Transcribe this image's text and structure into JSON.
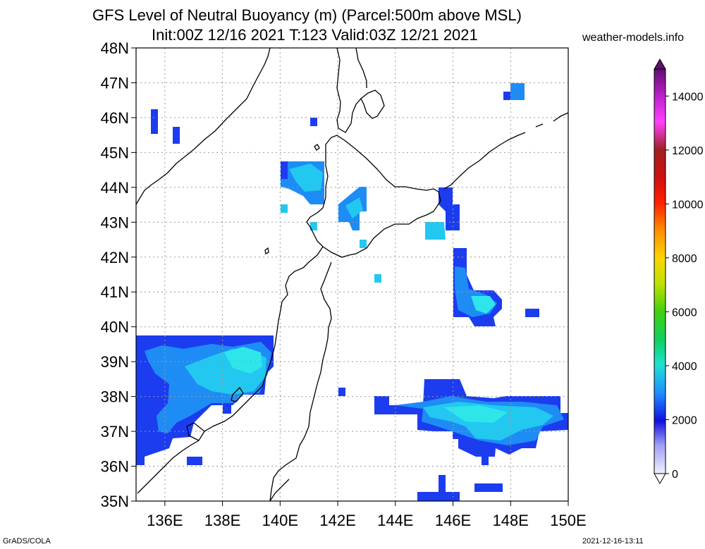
{
  "title_line1": "GFS Level of Neutral Buoyancy (m) (Parcel:500m above MSL)",
  "title_line2": "Init:00Z 12/16 2021 T:123 Valid:03Z 12/21 2021",
  "site": "weather-models.info",
  "footer_left": "GrADS/COLA",
  "footer_right": "2021-12-16-13:11",
  "map": {
    "lat_labels": [
      "35N",
      "36N",
      "37N",
      "38N",
      "39N",
      "40N",
      "41N",
      "42N",
      "43N",
      "44N",
      "45N",
      "46N",
      "47N",
      "48N"
    ],
    "lon_labels": [
      "136E",
      "138E",
      "140E",
      "142E",
      "144E",
      "146E",
      "148E",
      "150E"
    ],
    "lat_range": [
      35,
      48
    ],
    "lon_range": [
      135,
      150
    ]
  },
  "colorbar": {
    "labels": [
      "0",
      "2000",
      "4000",
      "6000",
      "8000",
      "10000",
      "12000",
      "14000"
    ],
    "range": [
      0,
      15000
    ]
  },
  "colors": {
    "field_dark": "#1c3cf0",
    "field_mid": "#1e8cf5",
    "field_light": "#22c8f0",
    "field_cyan": "#2ee6ea"
  }
}
